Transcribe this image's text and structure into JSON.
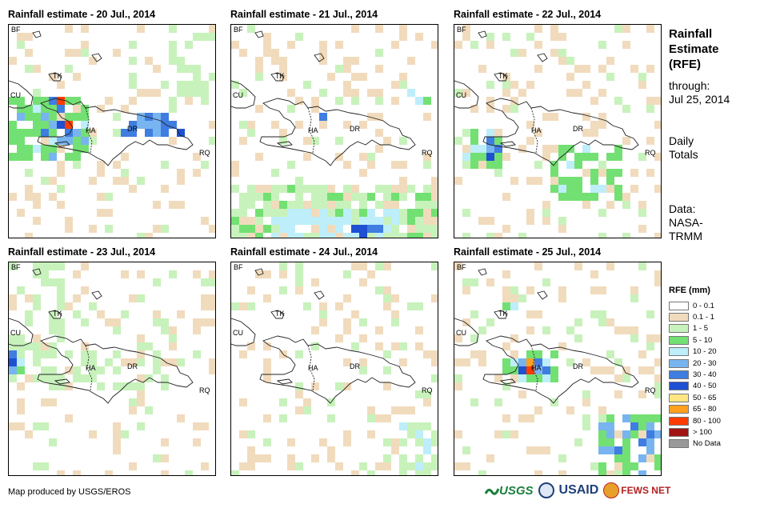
{
  "panels": [
    {
      "title": "Rainfall estimate - 20 Jul., 2014"
    },
    {
      "title": "Rainfall estimate - 21 Jul., 2014"
    },
    {
      "title": "Rainfall estimate - 22 Jul., 2014"
    },
    {
      "title": "Rainfall estimate - 23 Jul., 2014"
    },
    {
      "title": "Rainfall estimate - 24 Jul., 2014"
    },
    {
      "title": "Rainfall estimate - 25 Jul., 2014"
    }
  ],
  "map_labels": {
    "bf": "BF",
    "cu": "CU",
    "tk": "TK",
    "ha": "HA",
    "dr": "DR",
    "rq": "RQ"
  },
  "side": {
    "title_line1": "Rainfall",
    "title_line2": "Estimate",
    "title_line3": "(RFE)",
    "through": "through:",
    "date": "Jul 25, 2014",
    "daily1": "Daily",
    "daily2": "Totals",
    "data1": "Data:",
    "data2": "NASA-",
    "data3": "TRMM"
  },
  "legend": {
    "title": "RFE (mm)",
    "items": [
      {
        "label": "0 - 0.1",
        "color": "#ffffff"
      },
      {
        "label": "0.1 - 1",
        "color": "#f1dbbd"
      },
      {
        "label": "1 - 5",
        "color": "#c8f2bc"
      },
      {
        "label": "5 - 10",
        "color": "#73e073"
      },
      {
        "label": "10 - 20",
        "color": "#bdeefa"
      },
      {
        "label": "20 - 30",
        "color": "#78b4f0"
      },
      {
        "label": "30 - 40",
        "color": "#3f7de1"
      },
      {
        "label": "40 - 50",
        "color": "#1e50d2"
      },
      {
        "label": "50 - 65",
        "color": "#ffe682"
      },
      {
        "label": "65 - 80",
        "color": "#ffa01e"
      },
      {
        "label": "80 - 100",
        "color": "#ff3c00"
      },
      {
        "label": "> 100",
        "color": "#a01414"
      },
      {
        "label": "No Data",
        "color": "#999999"
      }
    ]
  },
  "footer": {
    "credit": "Map produced by USGS/EROS"
  },
  "logos": {
    "usgs": "USGS",
    "usaid": "USAID",
    "fewsnet": "FEWS NET"
  }
}
